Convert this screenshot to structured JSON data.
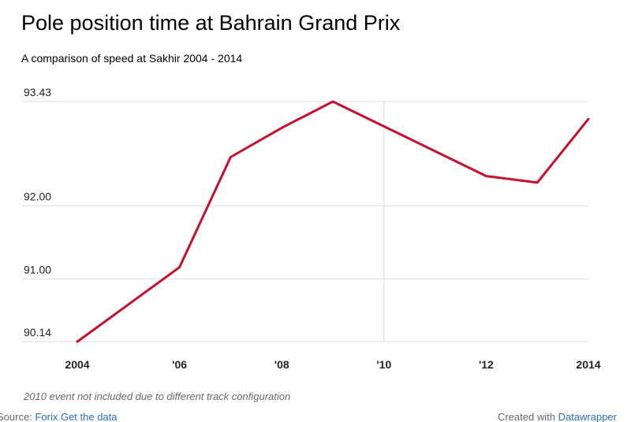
{
  "header": {
    "title": "Pole position time at Bahrain Grand Prix",
    "subtitle": "A comparison of speed at Sakhir 2004 - 2014"
  },
  "chart_data": {
    "type": "line",
    "title": "Pole position time at Bahrain Grand Prix",
    "subtitle": "A comparison of speed at Sakhir 2004 - 2014",
    "xlabel": "",
    "ylabel": "",
    "x": [
      2004,
      2006,
      2007,
      2008,
      2009,
      2012,
      2013,
      2014
    ],
    "series": [
      {
        "values": [
          90.14,
          91.16,
          92.67,
          93.07,
          93.43,
          92.41,
          92.32,
          93.19
        ]
      }
    ],
    "xlim": [
      2004,
      2014
    ],
    "ylim": [
      90.14,
      93.43
    ],
    "yticks": [
      93.43,
      92.0,
      91.0,
      90.14
    ],
    "ytick_labels": [
      "93.43",
      "92.00",
      "91.00",
      "90.14"
    ],
    "xticks": [
      2004,
      2006,
      2008,
      2010,
      2012,
      2014
    ],
    "xtick_labels": [
      "2004",
      "'06",
      "'08",
      "'10",
      "'12",
      "2014"
    ],
    "grid": true,
    "line_color": "#c8102e",
    "grid_color": "#dddddd"
  },
  "note": "2010 event not included due to different track configuration",
  "footer": {
    "source_label": "Source:",
    "source_name": "Forix",
    "get_data": "Get the data",
    "created_with": "Created with",
    "tool": "Datawrapper"
  }
}
